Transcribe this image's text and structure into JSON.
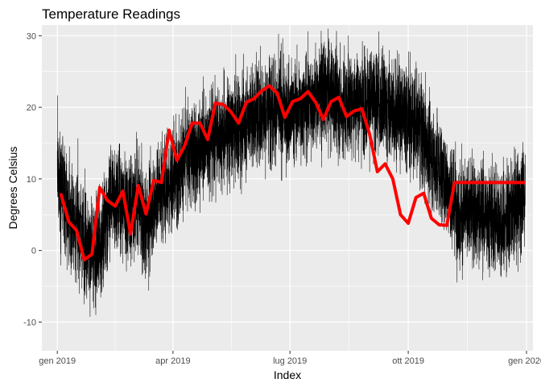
{
  "chart_data": {
    "type": "line",
    "title": "Temperature Readings",
    "xlabel": "Index",
    "ylabel": "Degrees Celsius",
    "grid": true,
    "legend": "none",
    "colors": {
      "panel": "#ebebeb",
      "grid": "#ffffff",
      "raw_series": "#000000",
      "smooth_series": "#ff0000",
      "tick_text": "#4d4d4d"
    },
    "xlim": [
      "2018-12-20",
      "2020-01-06"
    ],
    "ylim": [
      -14,
      31.5
    ],
    "x_ticks": [
      {
        "date": "2019-01-01",
        "label": "gen 2019"
      },
      {
        "date": "2019-04-01",
        "label": "apr 2019"
      },
      {
        "date": "2019-07-01",
        "label": "lug 2019"
      },
      {
        "date": "2019-10-01",
        "label": "ott 2019"
      },
      {
        "date": "2020-01-01",
        "label": "gen 2020"
      }
    ],
    "y_ticks": [
      -10,
      0,
      10,
      20,
      30
    ],
    "series": [
      {
        "kind": "raw",
        "dates_start": "2019-01-01",
        "dates_end": "2019-12-31",
        "baseline": [
          [
            "2019-01-01",
            11
          ],
          [
            "2019-01-10",
            5
          ],
          [
            "2019-01-20",
            3
          ],
          [
            "2019-01-28",
            -1
          ],
          [
            "2019-02-05",
            1
          ],
          [
            "2019-02-12",
            8
          ],
          [
            "2019-02-25",
            6
          ],
          [
            "2019-03-05",
            7
          ],
          [
            "2019-03-10",
            3
          ],
          [
            "2019-03-20",
            8
          ],
          [
            "2019-04-01",
            10
          ],
          [
            "2019-04-10",
            13
          ],
          [
            "2019-04-20",
            14
          ],
          [
            "2019-05-01",
            16
          ],
          [
            "2019-05-20",
            17
          ],
          [
            "2019-06-01",
            19
          ],
          [
            "2019-06-20",
            20
          ],
          [
            "2019-07-01",
            19
          ],
          [
            "2019-07-20",
            21
          ],
          [
            "2019-08-01",
            22
          ],
          [
            "2019-08-10",
            20
          ],
          [
            "2019-08-20",
            21
          ],
          [
            "2019-09-01",
            21
          ],
          [
            "2019-09-15",
            20
          ],
          [
            "2019-10-01",
            19
          ],
          [
            "2019-10-10",
            17
          ],
          [
            "2019-10-20",
            13
          ],
          [
            "2019-11-01",
            9
          ],
          [
            "2019-11-10",
            5
          ],
          [
            "2019-11-20",
            6
          ],
          [
            "2019-12-01",
            5
          ],
          [
            "2019-12-15",
            4
          ],
          [
            "2019-12-31",
            8
          ]
        ],
        "spread": 5.5
      },
      {
        "kind": "smoothed",
        "x": [
          "2019-01-04",
          "2019-01-10",
          "2019-01-16",
          "2019-01-22",
          "2019-01-28",
          "2019-02-03",
          "2019-02-09",
          "2019-02-15",
          "2019-02-21",
          "2019-02-27",
          "2019-03-05",
          "2019-03-11",
          "2019-03-17",
          "2019-03-23",
          "2019-03-29",
          "2019-04-04",
          "2019-04-10",
          "2019-04-16",
          "2019-04-22",
          "2019-04-28",
          "2019-05-04",
          "2019-05-10",
          "2019-05-16",
          "2019-05-22",
          "2019-05-28",
          "2019-06-03",
          "2019-06-09",
          "2019-06-15",
          "2019-06-21",
          "2019-06-27",
          "2019-07-03",
          "2019-07-09",
          "2019-07-15",
          "2019-07-21",
          "2019-07-27",
          "2019-08-02",
          "2019-08-08",
          "2019-08-14",
          "2019-08-20",
          "2019-08-26",
          "2019-09-01",
          "2019-09-07",
          "2019-09-13",
          "2019-09-19",
          "2019-09-25",
          "2019-10-01",
          "2019-10-07",
          "2019-10-13",
          "2019-10-19",
          "2019-10-25",
          "2019-10-31",
          "2019-11-06",
          "2019-11-12",
          "2019-11-18",
          "2019-11-24",
          "2019-11-30",
          "2019-12-06",
          "2019-12-12",
          "2019-12-18",
          "2019-12-24",
          "2019-12-30"
        ],
        "y": [
          7.8,
          4.0,
          2.8,
          -1.3,
          -0.5,
          8.8,
          7.0,
          6.2,
          8.3,
          2.3,
          9.1,
          5.1,
          9.8,
          9.5,
          16.8,
          12.6,
          14.6,
          17.8,
          17.8,
          15.5,
          20.6,
          20.4,
          19.4,
          17.8,
          20.7,
          21.2,
          22.3,
          23.0,
          22.0,
          18.6,
          20.8,
          21.2,
          22.2,
          20.7,
          18.3,
          20.8,
          21.4,
          18.7,
          19.5,
          19.8,
          16.2,
          11.0,
          12.1,
          10.0,
          5.0,
          3.8,
          7.4,
          8.0,
          4.5,
          3.6,
          3.5,
          9.5,
          9.5,
          9.5,
          9.5,
          9.5,
          9.5,
          9.5,
          9.5,
          9.5,
          9.5
        ]
      }
    ]
  }
}
